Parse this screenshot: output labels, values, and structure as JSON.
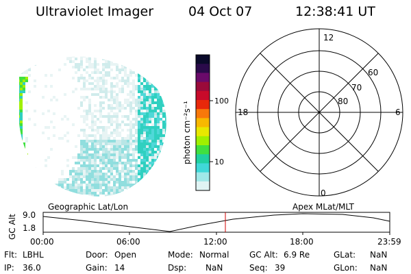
{
  "header": {
    "instrument": "Ultraviolet Imager",
    "date": "04 Oct 07",
    "time": "12:38:41 UT"
  },
  "colorbar": {
    "unit_label": "photon cm⁻²s⁻¹",
    "tick_100": "100",
    "tick_10": "10",
    "colors": [
      "#0a0a2a",
      "#2a0a4a",
      "#6a0a6a",
      "#9a0a3a",
      "#c80a2a",
      "#e8280a",
      "#f8780a",
      "#f8b800",
      "#e8e800",
      "#a0f000",
      "#40e040",
      "#20d0a0",
      "#40d8d8",
      "#a0e8e8",
      "#e0f4f4"
    ]
  },
  "polar": {
    "mlt_labels": [
      "12",
      "18",
      "6",
      "0"
    ],
    "lat_labels": [
      "60",
      "70",
      "80"
    ]
  },
  "timeline": {
    "left_title": "Geographic Lat/Lon",
    "right_title": "Apex  MLat/MLT",
    "axis_label": "GC Alt",
    "y_top": "9.0",
    "y_bottom": "1.8",
    "x_ticks": [
      "00:00",
      "06:00",
      "12:00",
      "18:00",
      "23:59"
    ],
    "current_marker_color": "#d00000"
  },
  "status": {
    "flt_label": "Flt:",
    "flt_value": "LBHL",
    "ip_label": "IP:",
    "ip_value": "36.0",
    "door_label": "Door:",
    "door_value": "Open",
    "gain_label": "Gain:",
    "gain_value": "14",
    "mode_label": "Mode:",
    "mode_value": "Normal",
    "dsp_label": "Dsp:",
    "dsp_value": "NaN",
    "gcalt_label": "GC Alt:",
    "gcalt_value": "6.9 Re",
    "seq_label": "Seq:",
    "seq_value": "39",
    "glat_label": "GLat:",
    "glat_value": "NaN",
    "glon_label": "GLon:",
    "glon_value": "NaN"
  }
}
